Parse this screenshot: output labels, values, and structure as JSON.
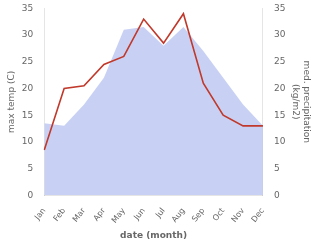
{
  "chart_data": {
    "type": "line",
    "x_label": "date (month)",
    "y_label": "max temp (C)",
    "y2_label": "med. precipitation\n(kg/m2)",
    "categories": [
      "Jan",
      "Feb",
      "Mar",
      "Apr",
      "May",
      "Jun",
      "Jul",
      "Aug",
      "Sep",
      "Oct",
      "Nov",
      "Dec"
    ],
    "series": [
      {
        "type": "area",
        "axis": "y2",
        "color": "#b0bef0",
        "values": [
          13.5,
          13.0,
          17.0,
          22.0,
          31.0,
          31.5,
          28.0,
          31.5,
          27.0,
          22.0,
          17.0,
          13.0
        ]
      },
      {
        "type": "line",
        "color": "#c0392b",
        "values": [
          8.5,
          20.0,
          20.5,
          24.5,
          26.0,
          33.0,
          28.5,
          34.0,
          21.0,
          15.0,
          13.0,
          13.0
        ]
      }
    ],
    "ylim": [
      0,
      35
    ],
    "yticks": [
      0,
      5,
      10,
      15,
      20,
      25,
      30,
      35
    ],
    "y2lim": [
      0,
      35
    ],
    "y2ticks": [
      0,
      5,
      10,
      15,
      20,
      25,
      30,
      35
    ],
    "grid": false
  }
}
